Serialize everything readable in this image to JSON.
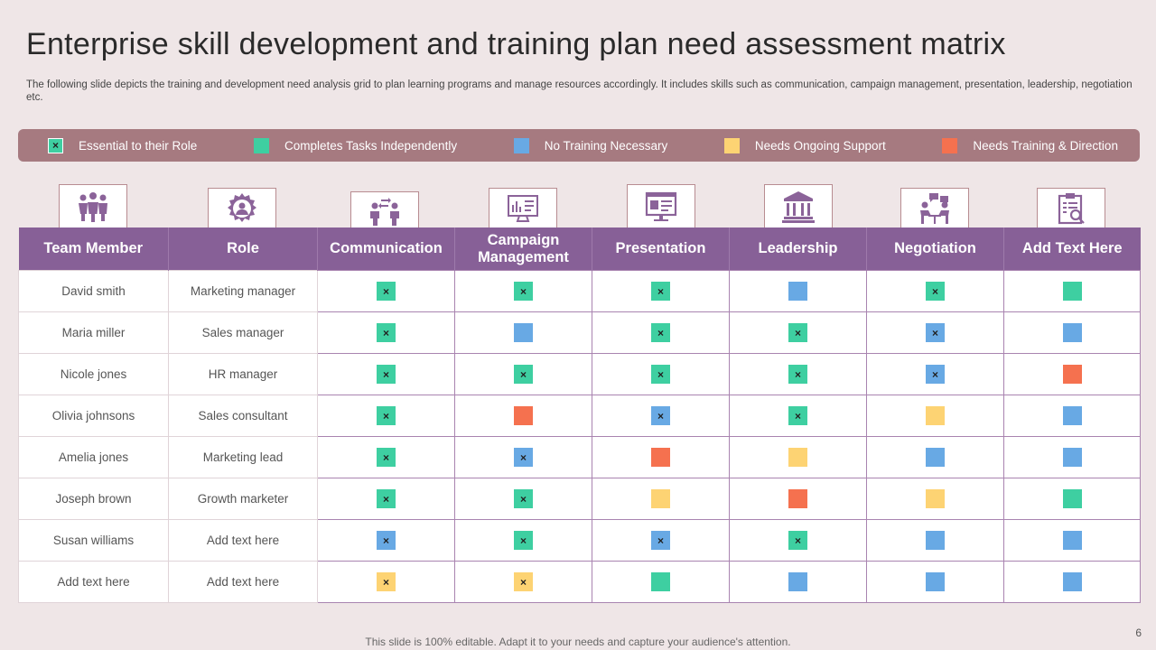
{
  "title": "Enterprise skill development and training plan need assessment matrix",
  "subtitle": "The following slide depicts the training and development need analysis grid to plan learning programs and manage resources accordingly. It includes skills such as communication, campaign management, presentation, leadership, negotiation etc.",
  "colors": {
    "essential": "#3ecfa1",
    "completes": "#3ecfa1",
    "no_training": "#68a9e4",
    "ongoing": "#fdd373",
    "needs_training": "#f5714f",
    "header": "#876097",
    "legend_bar": "#a67a80"
  },
  "legend": [
    {
      "key": "essential",
      "label": "Essential to their Role",
      "mark": "×"
    },
    {
      "key": "completes",
      "label": "Completes Tasks Independently",
      "mark": ""
    },
    {
      "key": "no_training",
      "label": "No Training Necessary",
      "mark": ""
    },
    {
      "key": "ongoing",
      "label": "Needs Ongoing Support",
      "mark": ""
    },
    {
      "key": "needs_training",
      "label": "Needs Training  & Direction",
      "mark": ""
    }
  ],
  "icons": [
    "team-icon",
    "gear-user-icon",
    "communication-icon",
    "campaign-dashboard-icon",
    "presentation-monitor-icon",
    "leadership-building-icon",
    "negotiation-meeting-icon",
    "clipboard-search-icon"
  ],
  "columns": [
    "Team Member",
    "Role",
    "Communication",
    "Campaign Management",
    "Presentation",
    "Leadership",
    "Negotiation",
    "Add Text Here"
  ],
  "rows": [
    {
      "name": "David  smith",
      "role": "Marketing manager",
      "cells": [
        {
          "c": "completes",
          "x": true
        },
        {
          "c": "completes",
          "x": true
        },
        {
          "c": "completes",
          "x": true
        },
        {
          "c": "no_training",
          "x": false
        },
        {
          "c": "completes",
          "x": true
        },
        {
          "c": "completes",
          "x": false
        }
      ]
    },
    {
      "name": "Maria miller",
      "role": "Sales manager",
      "cells": [
        {
          "c": "completes",
          "x": true
        },
        {
          "c": "no_training",
          "x": false
        },
        {
          "c": "completes",
          "x": true
        },
        {
          "c": "completes",
          "x": true
        },
        {
          "c": "no_training",
          "x": true
        },
        {
          "c": "no_training",
          "x": false
        }
      ]
    },
    {
      "name": "Nicole jones",
      "role": "HR manager",
      "cells": [
        {
          "c": "completes",
          "x": true
        },
        {
          "c": "completes",
          "x": true
        },
        {
          "c": "completes",
          "x": true
        },
        {
          "c": "completes",
          "x": true
        },
        {
          "c": "no_training",
          "x": true
        },
        {
          "c": "needs_training",
          "x": false
        }
      ]
    },
    {
      "name": "Olivia  johnsons",
      "role": "Sales consultant",
      "cells": [
        {
          "c": "completes",
          "x": true
        },
        {
          "c": "needs_training",
          "x": false
        },
        {
          "c": "no_training",
          "x": true
        },
        {
          "c": "completes",
          "x": true
        },
        {
          "c": "ongoing",
          "x": false
        },
        {
          "c": "no_training",
          "x": false
        }
      ]
    },
    {
      "name": "Amelia jones",
      "role": "Marketing  lead",
      "cells": [
        {
          "c": "completes",
          "x": true
        },
        {
          "c": "no_training",
          "x": true
        },
        {
          "c": "needs_training",
          "x": false
        },
        {
          "c": "ongoing",
          "x": false
        },
        {
          "c": "no_training",
          "x": false
        },
        {
          "c": "no_training",
          "x": false
        }
      ]
    },
    {
      "name": "Joseph  brown",
      "role": "Growth marketer",
      "cells": [
        {
          "c": "completes",
          "x": true
        },
        {
          "c": "completes",
          "x": true
        },
        {
          "c": "ongoing",
          "x": false
        },
        {
          "c": "needs_training",
          "x": false
        },
        {
          "c": "ongoing",
          "x": false
        },
        {
          "c": "completes",
          "x": false
        }
      ]
    },
    {
      "name": "Susan williams",
      "role": "Add text here",
      "cells": [
        {
          "c": "no_training",
          "x": true
        },
        {
          "c": "completes",
          "x": true
        },
        {
          "c": "no_training",
          "x": true
        },
        {
          "c": "completes",
          "x": true
        },
        {
          "c": "no_training",
          "x": false
        },
        {
          "c": "no_training",
          "x": false
        }
      ]
    },
    {
      "name": "Add text here",
      "role": "Add text here",
      "cells": [
        {
          "c": "ongoing",
          "x": true
        },
        {
          "c": "ongoing",
          "x": true
        },
        {
          "c": "completes",
          "x": false
        },
        {
          "c": "no_training",
          "x": false
        },
        {
          "c": "no_training",
          "x": false
        },
        {
          "c": "no_training",
          "x": false
        }
      ]
    }
  ],
  "mark_symbol": "×",
  "footer": "This slide is 100% editable. Adapt it to your needs and capture your audience's attention.",
  "page_number": "6"
}
